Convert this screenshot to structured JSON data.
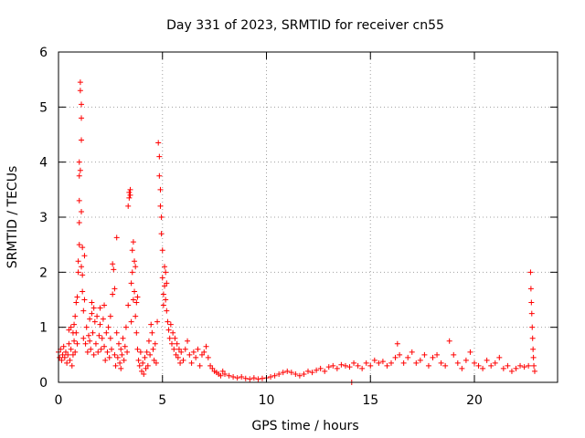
{
  "chart_data": {
    "type": "scatter",
    "title": "Day 331 of 2023, SRMTID for receiver cn55",
    "xlabel": "GPS time / hours",
    "ylabel": "SRMTID / TECUs",
    "xlim": [
      0,
      24
    ],
    "ylim": [
      0,
      6
    ],
    "xticks": [
      0,
      5,
      10,
      15,
      20
    ],
    "yticks": [
      0,
      1,
      2,
      3,
      4,
      5,
      6
    ],
    "grid": true,
    "marker": "+",
    "color": "#ff0000",
    "series": [
      {
        "name": "SRMTID",
        "points": [
          [
            0.0,
            0.55
          ],
          [
            0.05,
            0.45
          ],
          [
            0.1,
            0.6
          ],
          [
            0.15,
            0.4
          ],
          [
            0.2,
            0.5
          ],
          [
            0.25,
            0.65
          ],
          [
            0.3,
            0.45
          ],
          [
            0.35,
            0.55
          ],
          [
            0.4,
            0.35
          ],
          [
            0.45,
            0.5
          ],
          [
            0.5,
            0.7
          ],
          [
            0.5,
            0.95
          ],
          [
            0.55,
            0.4
          ],
          [
            0.6,
            0.6
          ],
          [
            0.6,
            1.0
          ],
          [
            0.65,
            0.3
          ],
          [
            0.7,
            0.5
          ],
          [
            0.7,
            0.9
          ],
          [
            0.75,
            0.75
          ],
          [
            0.75,
            1.05
          ],
          [
            0.8,
            0.55
          ],
          [
            0.8,
            1.2
          ],
          [
            0.85,
            0.9
          ],
          [
            0.85,
            1.45
          ],
          [
            0.9,
            0.7
          ],
          [
            0.9,
            1.55
          ],
          [
            0.95,
            2.0
          ],
          [
            0.95,
            2.2
          ],
          [
            1.0,
            2.5
          ],
          [
            1.0,
            2.9
          ],
          [
            1.0,
            3.3
          ],
          [
            1.0,
            3.75
          ],
          [
            1.0,
            4.0
          ],
          [
            1.05,
            3.85
          ],
          [
            1.05,
            5.45
          ],
          [
            1.05,
            5.3
          ],
          [
            1.1,
            5.05
          ],
          [
            1.1,
            4.8
          ],
          [
            1.1,
            4.4
          ],
          [
            1.1,
            3.1
          ],
          [
            1.1,
            2.1
          ],
          [
            1.15,
            2.45
          ],
          [
            1.15,
            1.95
          ],
          [
            1.15,
            1.65
          ],
          [
            1.2,
            1.3
          ],
          [
            1.2,
            0.8
          ],
          [
            1.25,
            2.3
          ],
          [
            1.25,
            1.5
          ],
          [
            1.3,
            0.7
          ],
          [
            1.35,
            1.0
          ],
          [
            1.4,
            0.55
          ],
          [
            1.45,
            0.85
          ],
          [
            1.5,
            1.15
          ],
          [
            1.5,
            0.75
          ],
          [
            1.55,
            0.6
          ],
          [
            1.6,
            1.25
          ],
          [
            1.6,
            1.45
          ],
          [
            1.65,
            0.9
          ],
          [
            1.7,
            1.35
          ],
          [
            1.7,
            0.5
          ],
          [
            1.75,
            1.1
          ],
          [
            1.8,
            0.7
          ],
          [
            1.85,
            1.2
          ],
          [
            1.9,
            0.55
          ],
          [
            1.95,
            0.85
          ],
          [
            2.0,
            1.05
          ],
          [
            2.0,
            1.35
          ],
          [
            2.05,
            0.6
          ],
          [
            2.1,
            0.8
          ],
          [
            2.15,
            1.15
          ],
          [
            2.2,
            1.4
          ],
          [
            2.2,
            0.65
          ],
          [
            2.25,
            0.4
          ],
          [
            2.3,
            0.9
          ],
          [
            2.35,
            0.55
          ],
          [
            2.4,
            1.0
          ],
          [
            2.45,
            0.45
          ],
          [
            2.5,
            0.8
          ],
          [
            2.5,
            1.2
          ],
          [
            2.55,
            0.6
          ],
          [
            2.6,
            1.6
          ],
          [
            2.6,
            2.15
          ],
          [
            2.65,
            2.05
          ],
          [
            2.7,
            1.7
          ],
          [
            2.7,
            0.5
          ],
          [
            2.75,
            0.3
          ],
          [
            2.8,
            0.9
          ],
          [
            2.8,
            2.63
          ],
          [
            2.85,
            0.45
          ],
          [
            2.9,
            0.7
          ],
          [
            2.95,
            0.35
          ],
          [
            3.0,
            0.6
          ],
          [
            3.0,
            0.25
          ],
          [
            3.05,
            0.5
          ],
          [
            3.1,
            0.8
          ],
          [
            3.15,
            0.4
          ],
          [
            3.2,
            0.65
          ],
          [
            3.25,
            1.0
          ],
          [
            3.3,
            0.55
          ],
          [
            3.35,
            1.4
          ],
          [
            3.35,
            3.2
          ],
          [
            3.4,
            3.45
          ],
          [
            3.4,
            3.35
          ],
          [
            3.45,
            3.5
          ],
          [
            3.45,
            3.4
          ],
          [
            3.5,
            1.8
          ],
          [
            3.5,
            1.1
          ],
          [
            3.55,
            2.4
          ],
          [
            3.55,
            2.0
          ],
          [
            3.6,
            2.55
          ],
          [
            3.6,
            1.5
          ],
          [
            3.65,
            2.2
          ],
          [
            3.65,
            1.65
          ],
          [
            3.7,
            2.1
          ],
          [
            3.7,
            1.2
          ],
          [
            3.75,
            1.45
          ],
          [
            3.75,
            0.9
          ],
          [
            3.8,
            1.55
          ],
          [
            3.8,
            0.6
          ],
          [
            3.85,
            0.4
          ],
          [
            3.9,
            0.3
          ],
          [
            3.95,
            0.55
          ],
          [
            4.0,
            0.2
          ],
          [
            4.05,
            0.35
          ],
          [
            4.1,
            0.15
          ],
          [
            4.15,
            0.45
          ],
          [
            4.2,
            0.25
          ],
          [
            4.25,
            0.55
          ],
          [
            4.3,
            0.3
          ],
          [
            4.35,
            0.75
          ],
          [
            4.4,
            0.5
          ],
          [
            4.45,
            1.05
          ],
          [
            4.5,
            0.9
          ],
          [
            4.55,
            0.6
          ],
          [
            4.6,
            0.4
          ],
          [
            4.65,
            0.7
          ],
          [
            4.7,
            0.35
          ],
          [
            4.75,
            1.1
          ],
          [
            4.8,
            4.35
          ],
          [
            4.85,
            4.1
          ],
          [
            4.85,
            3.75
          ],
          [
            4.9,
            3.5
          ],
          [
            4.9,
            3.2
          ],
          [
            4.95,
            3.0
          ],
          [
            4.95,
            2.7
          ],
          [
            5.0,
            2.4
          ],
          [
            5.0,
            1.9
          ],
          [
            5.05,
            1.6
          ],
          [
            5.05,
            1.4
          ],
          [
            5.1,
            2.1
          ],
          [
            5.1,
            1.75
          ],
          [
            5.15,
            1.5
          ],
          [
            5.15,
            2.0
          ],
          [
            5.2,
            1.8
          ],
          [
            5.2,
            1.3
          ],
          [
            5.25,
            1.1
          ],
          [
            5.3,
            0.95
          ],
          [
            5.35,
            0.8
          ],
          [
            5.4,
            1.05
          ],
          [
            5.45,
            0.7
          ],
          [
            5.5,
            0.9
          ],
          [
            5.55,
            0.6
          ],
          [
            5.6,
            0.8
          ],
          [
            5.65,
            0.5
          ],
          [
            5.7,
            0.7
          ],
          [
            5.75,
            0.45
          ],
          [
            5.8,
            0.6
          ],
          [
            5.85,
            0.35
          ],
          [
            5.9,
            0.55
          ],
          [
            6.0,
            0.4
          ],
          [
            6.1,
            0.6
          ],
          [
            6.2,
            0.75
          ],
          [
            6.3,
            0.5
          ],
          [
            6.4,
            0.35
          ],
          [
            6.5,
            0.55
          ],
          [
            6.6,
            0.45
          ],
          [
            6.7,
            0.6
          ],
          [
            6.8,
            0.3
          ],
          [
            6.9,
            0.5
          ],
          [
            7.0,
            0.55
          ],
          [
            7.1,
            0.65
          ],
          [
            7.2,
            0.45
          ],
          [
            7.3,
            0.3
          ],
          [
            7.4,
            0.25
          ],
          [
            7.5,
            0.2
          ],
          [
            7.6,
            0.18
          ],
          [
            7.7,
            0.15
          ],
          [
            7.8,
            0.12
          ],
          [
            7.9,
            0.2
          ],
          [
            8.0,
            0.15
          ],
          [
            8.2,
            0.12
          ],
          [
            8.4,
            0.1
          ],
          [
            8.6,
            0.08
          ],
          [
            8.8,
            0.1
          ],
          [
            9.0,
            0.07
          ],
          [
            9.2,
            0.06
          ],
          [
            9.4,
            0.08
          ],
          [
            9.6,
            0.06
          ],
          [
            9.8,
            0.07
          ],
          [
            10.0,
            0.08
          ],
          [
            10.2,
            0.1
          ],
          [
            10.4,
            0.12
          ],
          [
            10.6,
            0.15
          ],
          [
            10.8,
            0.18
          ],
          [
            11.0,
            0.2
          ],
          [
            11.2,
            0.18
          ],
          [
            11.4,
            0.15
          ],
          [
            11.6,
            0.12
          ],
          [
            11.8,
            0.15
          ],
          [
            12.0,
            0.2
          ],
          [
            12.2,
            0.18
          ],
          [
            12.4,
            0.22
          ],
          [
            12.6,
            0.25
          ],
          [
            12.8,
            0.2
          ],
          [
            13.0,
            0.28
          ],
          [
            13.2,
            0.3
          ],
          [
            13.4,
            0.25
          ],
          [
            13.6,
            0.32
          ],
          [
            13.8,
            0.3
          ],
          [
            14.0,
            0.28
          ],
          [
            14.1,
            0.0
          ],
          [
            14.2,
            0.35
          ],
          [
            14.4,
            0.3
          ],
          [
            14.6,
            0.25
          ],
          [
            14.8,
            0.35
          ],
          [
            15.0,
            0.3
          ],
          [
            15.2,
            0.4
          ],
          [
            15.4,
            0.35
          ],
          [
            15.6,
            0.38
          ],
          [
            15.8,
            0.3
          ],
          [
            16.0,
            0.35
          ],
          [
            16.2,
            0.45
          ],
          [
            16.3,
            0.7
          ],
          [
            16.4,
            0.5
          ],
          [
            16.6,
            0.35
          ],
          [
            16.8,
            0.45
          ],
          [
            17.0,
            0.55
          ],
          [
            17.2,
            0.35
          ],
          [
            17.4,
            0.4
          ],
          [
            17.6,
            0.5
          ],
          [
            17.8,
            0.3
          ],
          [
            18.0,
            0.45
          ],
          [
            18.2,
            0.5
          ],
          [
            18.4,
            0.35
          ],
          [
            18.6,
            0.3
          ],
          [
            18.8,
            0.75
          ],
          [
            19.0,
            0.5
          ],
          [
            19.2,
            0.35
          ],
          [
            19.4,
            0.25
          ],
          [
            19.6,
            0.4
          ],
          [
            19.8,
            0.55
          ],
          [
            20.0,
            0.35
          ],
          [
            20.2,
            0.3
          ],
          [
            20.4,
            0.25
          ],
          [
            20.6,
            0.4
          ],
          [
            20.8,
            0.3
          ],
          [
            21.0,
            0.35
          ],
          [
            21.2,
            0.45
          ],
          [
            21.4,
            0.25
          ],
          [
            21.6,
            0.3
          ],
          [
            21.8,
            0.2
          ],
          [
            22.0,
            0.25
          ],
          [
            22.2,
            0.3
          ],
          [
            22.4,
            0.28
          ],
          [
            22.6,
            0.3
          ],
          [
            22.7,
            2.0
          ],
          [
            22.72,
            1.7
          ],
          [
            22.74,
            1.45
          ],
          [
            22.76,
            1.25
          ],
          [
            22.78,
            1.0
          ],
          [
            22.8,
            0.8
          ],
          [
            22.82,
            0.6
          ],
          [
            22.84,
            0.45
          ],
          [
            22.86,
            0.3
          ],
          [
            22.9,
            0.2
          ]
        ]
      }
    ]
  }
}
